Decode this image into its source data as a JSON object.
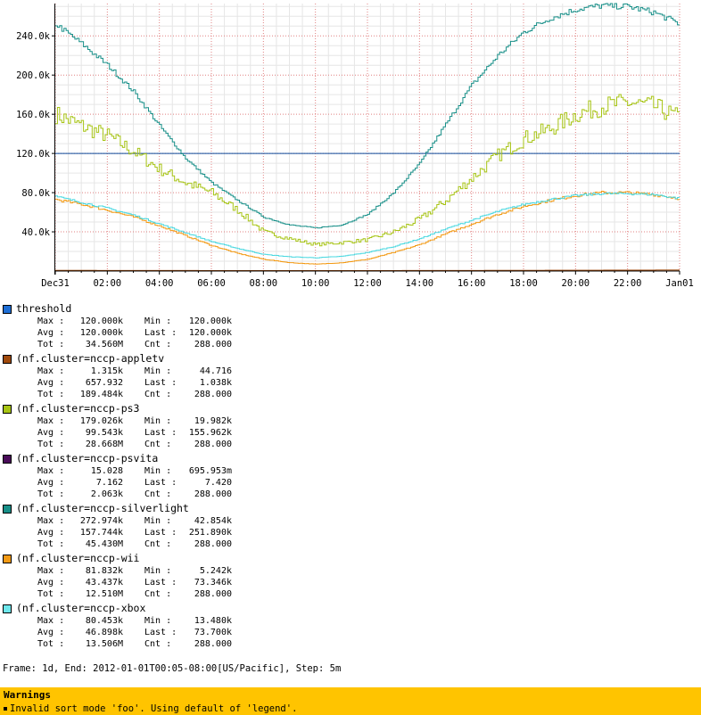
{
  "chart_data": {
    "type": "line",
    "x_tick_labels": [
      "Dec31",
      "02:00",
      "04:00",
      "06:00",
      "08:00",
      "10:00",
      "12:00",
      "14:00",
      "16:00",
      "18:00",
      "20:00",
      "22:00",
      "Jan01"
    ],
    "x_hours": [
      0,
      2,
      4,
      6,
      8,
      10,
      12,
      14,
      16,
      18,
      20,
      22,
      24
    ],
    "y_tick_labels": [
      "40.0k",
      "80.0k",
      "120.0k",
      "160.0k",
      "200.0k",
      "240.0k"
    ],
    "y_tick_values": [
      40000,
      80000,
      120000,
      160000,
      200000,
      240000
    ],
    "ylim": [
      0,
      272974
    ],
    "xlim_hours": [
      0,
      24
    ],
    "step_minutes": 5,
    "grid": true,
    "series": [
      {
        "name": "threshold",
        "color": "#1f6fd6",
        "line": "#0d4a9b",
        "x": [
          0,
          24
        ],
        "y": [
          120000,
          120000
        ]
      },
      {
        "name": "(nf.cluster=nccp-appletv",
        "color": "#a04a0c",
        "line": "#a04a0c",
        "x": [
          0,
          2,
          4,
          6,
          8,
          10,
          12,
          14,
          16,
          18,
          20,
          22,
          24
        ],
        "y": [
          700,
          600,
          550,
          500,
          450,
          400,
          450,
          550,
          600,
          700,
          800,
          900,
          1038
        ]
      },
      {
        "name": "(nf.cluster=nccp-ps3",
        "color": "#a7c414",
        "line": "#a7c414",
        "x": [
          0,
          1,
          2,
          3,
          4,
          5,
          6,
          7,
          8,
          9,
          10,
          11,
          12,
          13,
          14,
          15,
          16,
          17,
          18,
          19,
          20,
          21,
          22,
          23,
          24
        ],
        "y": [
          160000,
          148000,
          138000,
          122000,
          104000,
          90000,
          80000,
          62000,
          40000,
          33000,
          27000,
          29000,
          32000,
          40000,
          53000,
          72000,
          95000,
          118000,
          135000,
          145000,
          160000,
          168000,
          172000,
          168000,
          156000
        ]
      },
      {
        "name": "(nf.cluster=nccp-psvita",
        "color": "#4a0c59",
        "line": "#4a0c59",
        "x": [
          0,
          24
        ],
        "y": [
          7,
          7
        ]
      },
      {
        "name": "(nf.cluster=nccp-silverlight",
        "color": "#178f88",
        "line": "#178f88",
        "x": [
          0,
          1,
          2,
          3,
          4,
          5,
          6,
          7,
          8,
          9,
          10,
          11,
          12,
          13,
          14,
          15,
          16,
          17,
          18,
          19,
          20,
          21,
          22,
          23,
          24
        ],
        "y": [
          252000,
          232000,
          210000,
          183000,
          148000,
          115000,
          90000,
          72000,
          55000,
          47000,
          44000,
          47000,
          58000,
          80000,
          110000,
          150000,
          190000,
          220000,
          244000,
          258000,
          267000,
          271000,
          270000,
          264000,
          252000
        ]
      },
      {
        "name": "(nf.cluster=nccp-wii",
        "color": "#f39a14",
        "line": "#f39a14",
        "x": [
          0,
          1,
          2,
          3,
          4,
          5,
          6,
          7,
          8,
          9,
          10,
          11,
          12,
          13,
          14,
          15,
          16,
          17,
          18,
          19,
          20,
          21,
          22,
          23,
          24
        ],
        "y": [
          73000,
          68000,
          62000,
          55000,
          46000,
          36000,
          26000,
          18000,
          12000,
          8500,
          7000,
          8500,
          12000,
          19000,
          27000,
          38000,
          48000,
          58000,
          66000,
          72000,
          77000,
          80000,
          80000,
          78000,
          74000
        ]
      },
      {
        "name": "(nf.cluster=nccp-xbox",
        "color": "#6ee7ec",
        "line": "#48d8e0",
        "x": [
          0,
          1,
          2,
          3,
          4,
          5,
          6,
          7,
          8,
          9,
          10,
          11,
          12,
          13,
          14,
          15,
          16,
          17,
          18,
          19,
          20,
          21,
          22,
          23,
          24
        ],
        "y": [
          76000,
          70000,
          64000,
          57000,
          48000,
          39000,
          30000,
          23000,
          17000,
          14500,
          13500,
          15000,
          19000,
          25000,
          33000,
          43000,
          52000,
          61000,
          68000,
          73000,
          77000,
          79000,
          79000,
          78000,
          74000
        ]
      }
    ]
  },
  "legend": [
    {
      "name": "threshold",
      "max": "120.000k",
      "min": "120.000k",
      "avg": "120.000k",
      "last": "120.000k",
      "tot": "34.560M",
      "cnt": "288.000"
    },
    {
      "name": "(nf.cluster=nccp-appletv",
      "max": "1.315k",
      "min": "44.716",
      "avg": "657.932",
      "last": "1.038k",
      "tot": "189.484k",
      "cnt": "288.000"
    },
    {
      "name": "(nf.cluster=nccp-ps3",
      "max": "179.026k",
      "min": "19.982k",
      "avg": "99.543k",
      "last": "155.962k",
      "tot": "28.668M",
      "cnt": "288.000"
    },
    {
      "name": "(nf.cluster=nccp-psvita",
      "max": "15.028",
      "min": "695.953m",
      "avg": "7.162",
      "last": "7.420",
      "tot": "2.063k",
      "cnt": "288.000"
    },
    {
      "name": "(nf.cluster=nccp-silverlight",
      "max": "272.974k",
      "min": "42.854k",
      "avg": "157.744k",
      "last": "251.890k",
      "tot": "45.430M",
      "cnt": "288.000"
    },
    {
      "name": "(nf.cluster=nccp-wii",
      "max": "81.832k",
      "min": "5.242k",
      "avg": "43.437k",
      "last": "73.346k",
      "tot": "12.510M",
      "cnt": "288.000"
    },
    {
      "name": "(nf.cluster=nccp-xbox",
      "max": "80.453k",
      "min": "13.480k",
      "avg": "46.898k",
      "last": "73.700k",
      "tot": "13.506M",
      "cnt": "288.000"
    }
  ],
  "stat_labels": {
    "max": "Max :",
    "min": "Min :",
    "avg": "Avg :",
    "last": "Last :",
    "tot": "Tot :",
    "cnt": "Cnt :"
  },
  "footer": {
    "frame_text": "Frame: 1d, End: 2012-01-01T00:05-08:00[US/Pacific], Step: 5m"
  },
  "warnings": {
    "title": "Warnings",
    "items": [
      "Invalid sort mode 'foo'. Using default of 'legend'."
    ]
  }
}
